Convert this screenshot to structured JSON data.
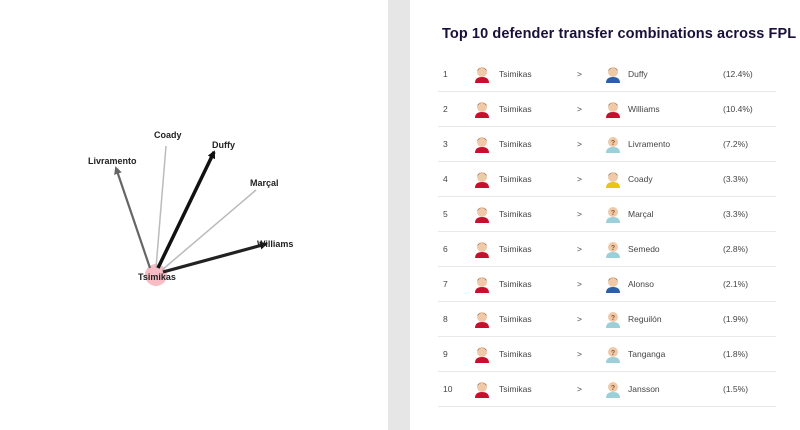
{
  "graph": {
    "source_node": "Tsimikas",
    "targets": [
      {
        "name": "Coady",
        "weight": "light"
      },
      {
        "name": "Duffy",
        "weight": "heavy"
      },
      {
        "name": "Livramento",
        "weight": "medium"
      },
      {
        "name": "Marçal",
        "weight": "light"
      },
      {
        "name": "Williams",
        "weight": "heavy"
      }
    ]
  },
  "table": {
    "title": "Top 10 defender transfer combinations across FPL",
    "separator": ">",
    "rows": [
      {
        "rank": "1",
        "player_out": "Tsimikas",
        "player_in": "Duffy",
        "pct": "(12.4%)",
        "in_avatar": "player-photo"
      },
      {
        "rank": "2",
        "player_out": "Tsimikas",
        "player_in": "Williams",
        "pct": "(10.4%)",
        "in_avatar": "player-photo"
      },
      {
        "rank": "3",
        "player_out": "Tsimikas",
        "player_in": "Livramento",
        "pct": "(7.2%)",
        "in_avatar": "unknown-player"
      },
      {
        "rank": "4",
        "player_out": "Tsimikas",
        "player_in": "Coady",
        "pct": "(3.3%)",
        "in_avatar": "player-photo"
      },
      {
        "rank": "5",
        "player_out": "Tsimikas",
        "player_in": "Marçal",
        "pct": "(3.3%)",
        "in_avatar": "unknown-player"
      },
      {
        "rank": "6",
        "player_out": "Tsimikas",
        "player_in": "Semedo",
        "pct": "(2.8%)",
        "in_avatar": "unknown-player"
      },
      {
        "rank": "7",
        "player_out": "Tsimikas",
        "player_in": "Alonso",
        "pct": "(2.1%)",
        "in_avatar": "player-photo"
      },
      {
        "rank": "8",
        "player_out": "Tsimikas",
        "player_in": "Reguilón",
        "pct": "(1.9%)",
        "in_avatar": "unknown-player"
      },
      {
        "rank": "9",
        "player_out": "Tsimikas",
        "player_in": "Tanganga",
        "pct": "(1.8%)",
        "in_avatar": "unknown-player"
      },
      {
        "rank": "10",
        "player_out": "Tsimikas",
        "player_in": "Jansson",
        "pct": "(1.5%)",
        "in_avatar": "unknown-player"
      }
    ]
  },
  "colors": {
    "title": "#1a0f3a",
    "source_node_fill": "#f7bcc4",
    "edge_heavy": "#111111",
    "edge_medium": "#666666",
    "edge_light": "#bbbbbb",
    "kit_red": "#c8102e",
    "kit_blue": "#2b5fa8",
    "kit_yellow": "#e8c619",
    "kit_grey": "#9bd0d8"
  }
}
